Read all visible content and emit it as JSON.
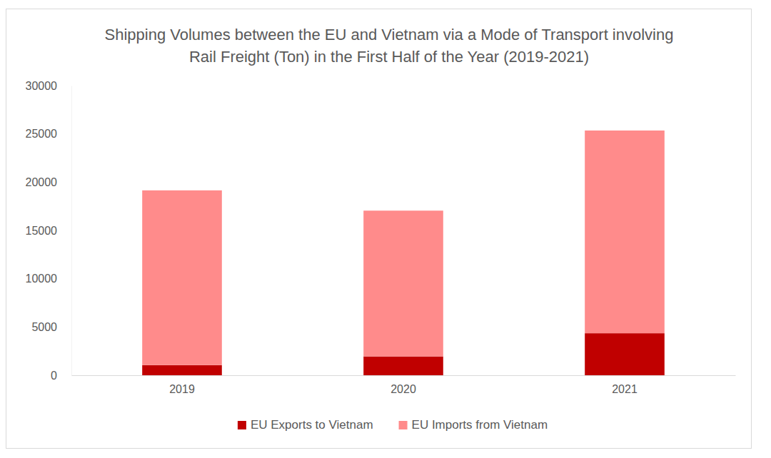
{
  "chart_data": {
    "type": "bar",
    "stacked": true,
    "title": "Shipping Volumes between the EU and Vietnam via a Mode of Transport involving Rail Freight (Ton) in the First Half of the Year (2019-2021)",
    "categories": [
      "2019",
      "2020",
      "2021"
    ],
    "series": [
      {
        "name": "EU Exports to Vietnam",
        "color": "#c00000",
        "values": [
          1050,
          1950,
          4350
        ]
      },
      {
        "name": "EU Imports from Vietnam",
        "color": "#ff8b8b",
        "values": [
          18100,
          15100,
          21000
        ]
      }
    ],
    "ylim": [
      0,
      30000
    ],
    "yticks": [
      0,
      5000,
      10000,
      15000,
      20000,
      25000,
      30000
    ],
    "grid": false,
    "legend": "bottom"
  }
}
